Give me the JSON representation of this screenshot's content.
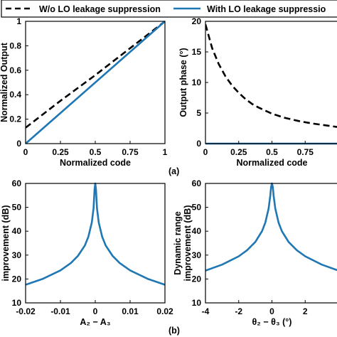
{
  "figure": {
    "label_a": "(a)",
    "label_b": "(b)"
  },
  "colors": {
    "blue": "#1f77b4",
    "black": "#000000"
  },
  "legend": {
    "items": [
      {
        "label": "W/o LO leakage suppression",
        "style": "dashed",
        "color": "#000000"
      },
      {
        "label": "With LO leakage suppressio",
        "style": "solid",
        "color": "#1f77b4"
      }
    ]
  },
  "chart_data": [
    {
      "id": "a-left",
      "type": "line",
      "xlabel": "Normalized code",
      "ylabel": "Normalized Output",
      "xlim": [
        0,
        1
      ],
      "ylim": [
        0,
        1
      ],
      "xticks": [
        "0",
        "0.25",
        "0.5",
        "0.75",
        "1"
      ],
      "yticks": [
        "0",
        "0.2",
        "0.4",
        "0.6",
        "0.8",
        "1"
      ],
      "grid": false,
      "series": [
        {
          "style": "dashed",
          "color": "#000000",
          "x": [
            0,
            0.25,
            0.5,
            0.75,
            1
          ],
          "y": [
            0.13,
            0.35,
            0.56,
            0.78,
            1.0
          ]
        },
        {
          "style": "solid",
          "color": "#1f77b4",
          "x": [
            0,
            0.25,
            0.5,
            0.75,
            1
          ],
          "y": [
            0,
            0.25,
            0.5,
            0.75,
            1.0
          ]
        }
      ]
    },
    {
      "id": "a-right",
      "type": "line",
      "xlabel": "Normalized code",
      "ylabel": "Output phase (°)",
      "xlim": [
        0,
        1
      ],
      "ylim": [
        0,
        20
      ],
      "xticks": [
        "0",
        "0.25",
        "0.5",
        "0.75"
      ],
      "yticks": [
        "0",
        "5",
        "10",
        "15",
        "20"
      ],
      "grid": false,
      "series": [
        {
          "style": "dashed",
          "color": "#000000",
          "x": [
            0,
            0.05,
            0.1,
            0.15,
            0.2,
            0.25,
            0.3,
            0.35,
            0.4,
            0.5,
            0.6,
            0.7,
            0.8,
            0.9,
            1.0
          ],
          "y": [
            19.5,
            15.6,
            13.0,
            11.0,
            9.5,
            8.3,
            7.3,
            6.5,
            5.9,
            4.9,
            4.2,
            3.7,
            3.3,
            3.0,
            2.7
          ]
        },
        {
          "style": "solid",
          "color": "#1f77b4",
          "x": [
            0,
            1
          ],
          "y": [
            0,
            0
          ]
        }
      ]
    },
    {
      "id": "b-left",
      "type": "line",
      "xlabel": "A₂ − A₃",
      "ylabel": "improvement (dB)",
      "xlim": [
        -0.02,
        0.02
      ],
      "ylim": [
        10,
        60
      ],
      "xticks": [
        "-0.02",
        "-0.01",
        "0",
        "0.01",
        "0.02"
      ],
      "yticks": [
        "10",
        "20",
        "30",
        "40",
        "50",
        "60"
      ],
      "grid": false,
      "series": [
        {
          "style": "solid",
          "color": "#1f77b4",
          "x": [
            -0.02,
            -0.015,
            -0.01,
            -0.007,
            -0.005,
            -0.003,
            -0.002,
            -0.001,
            -0.0005,
            -0.0002,
            0,
            0.0002,
            0.0005,
            0.001,
            0.002,
            0.003,
            0.005,
            0.007,
            0.01,
            0.015,
            0.02
          ],
          "y": [
            17.6,
            20.1,
            23.6,
            26.7,
            29.6,
            34.0,
            37.6,
            43.6,
            49.6,
            57.5,
            60,
            57.5,
            49.6,
            43.6,
            37.6,
            34.0,
            29.6,
            26.7,
            23.6,
            20.1,
            17.6
          ]
        }
      ]
    },
    {
      "id": "b-right",
      "type": "line",
      "xlabel": "θ₂ − θ₃ (°)",
      "ylabel": "Dynamic range improvement (dB)",
      "xlim": [
        -4,
        4
      ],
      "ylim": [
        10,
        60
      ],
      "xticks": [
        "-4",
        "-2",
        "0",
        "2"
      ],
      "yticks": [
        "10",
        "20",
        "30",
        "40",
        "50",
        "60"
      ],
      "grid": false,
      "series": [
        {
          "style": "solid",
          "color": "#1f77b4",
          "x": [
            -4,
            -3,
            -2,
            -1.5,
            -1,
            -0.6,
            -0.4,
            -0.2,
            -0.1,
            -0.05,
            0,
            0.05,
            0.1,
            0.2,
            0.4,
            0.6,
            1,
            1.5,
            2,
            3,
            4
          ],
          "y": [
            23.5,
            26.0,
            29.5,
            32.0,
            35.5,
            40.0,
            43.5,
            49.5,
            55.0,
            58.5,
            60,
            58.5,
            55.0,
            49.5,
            43.5,
            40.0,
            35.5,
            32.0,
            29.5,
            26.0,
            23.5
          ]
        }
      ]
    }
  ]
}
